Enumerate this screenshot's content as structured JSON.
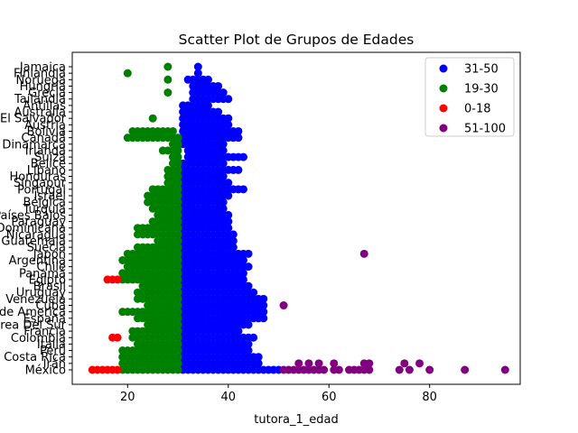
{
  "chart_data": {
    "type": "scatter",
    "title": "Scatter Plot de Grupos de Edades",
    "xlabel": "tutora_1_edad",
    "ylabel": "",
    "xlim": [
      9,
      98
    ],
    "xticks": [
      20,
      40,
      60,
      80
    ],
    "categories": [
      "México",
      "Irán",
      "Costa Rica",
      "Perú",
      "Italia",
      "Colombia",
      "Francia",
      "Corea Del Sur",
      "España",
      "Estados Unidos de America",
      "Cuba",
      "Venezuela",
      "Uruguay",
      "Brasil",
      "Egipto",
      "Panamá",
      "Chile",
      "Argentina",
      "Japón",
      "Suecia",
      "Guatemala",
      "Nicaragua",
      "República Dominicana",
      "Paraguay",
      "Países Bajos",
      "Turquía",
      "Bélgica",
      "Israel",
      "Portugal",
      "Singapur",
      "Honduras",
      "Líbano",
      "Belice",
      "Suiza",
      "Irlanda",
      "Dinamarca",
      "Canadá",
      "Bolivia",
      "Austria",
      "El Salvador",
      "Australia",
      "Antillas",
      "Tailandia",
      "Grecia",
      "Hungría",
      "Noruega",
      "Finlandia",
      "Jamaica"
    ],
    "legend_position": "top-right",
    "series": [
      {
        "name": "31-50",
        "color": "#0000ff",
        "x_min": 31,
        "x_max": 50,
        "spans": [
          [
            0,
            31,
            50
          ],
          [
            1,
            31,
            46
          ],
          [
            2,
            31,
            46
          ],
          [
            3,
            31,
            44
          ],
          [
            4,
            31,
            44
          ],
          [
            5,
            31,
            45
          ],
          [
            6,
            31,
            42
          ],
          [
            7,
            31,
            44
          ],
          [
            8,
            31,
            47
          ],
          [
            9,
            31,
            47
          ],
          [
            10,
            31,
            47
          ],
          [
            11,
            31,
            47
          ],
          [
            12,
            31,
            45
          ],
          [
            13,
            31,
            44
          ],
          [
            14,
            31,
            43
          ],
          [
            15,
            31,
            43
          ],
          [
            16,
            31,
            44
          ],
          [
            17,
            31,
            43
          ],
          [
            18,
            31,
            44
          ],
          [
            19,
            31,
            41
          ],
          [
            20,
            31,
            41
          ],
          [
            21,
            31,
            41
          ],
          [
            22,
            31,
            40
          ],
          [
            23,
            31,
            40
          ],
          [
            24,
            31,
            40
          ],
          [
            25,
            31,
            39
          ],
          [
            26,
            31,
            39
          ],
          [
            27,
            31,
            40
          ],
          [
            28,
            31,
            43
          ],
          [
            29,
            31,
            40
          ],
          [
            30,
            31,
            39
          ],
          [
            31,
            31,
            42
          ],
          [
            32,
            31,
            39
          ],
          [
            33,
            32,
            43
          ],
          [
            34,
            32,
            39
          ],
          [
            35,
            31,
            39
          ],
          [
            36,
            31,
            42
          ],
          [
            37,
            31,
            42
          ],
          [
            38,
            31,
            40
          ],
          [
            39,
            31,
            40
          ],
          [
            40,
            31,
            38
          ],
          [
            41,
            31,
            36
          ],
          [
            42,
            33,
            40
          ],
          [
            43,
            33,
            39
          ],
          [
            44,
            33,
            38
          ],
          [
            45,
            32,
            36
          ],
          [
            46,
            34,
            34
          ],
          [
            47,
            34,
            34
          ]
        ]
      },
      {
        "name": "19-30",
        "color": "#008000",
        "x_min": 19,
        "x_max": 30,
        "spans": [
          [
            0,
            19,
            30
          ],
          [
            1,
            19,
            30
          ],
          [
            2,
            19,
            30
          ],
          [
            3,
            19,
            30
          ],
          [
            4,
            22,
            30
          ],
          [
            5,
            21,
            30
          ],
          [
            6,
            21,
            30
          ],
          [
            7,
            24,
            30
          ],
          [
            8,
            22,
            30
          ],
          [
            9,
            19,
            30
          ],
          [
            10,
            24,
            30
          ],
          [
            11,
            22,
            30
          ],
          [
            12,
            22,
            30
          ],
          [
            13,
            23,
            30
          ],
          [
            14,
            19,
            30
          ],
          [
            15,
            19,
            30
          ],
          [
            16,
            20,
            30
          ],
          [
            17,
            19,
            30
          ],
          [
            18,
            20,
            30
          ],
          [
            19,
            22,
            30
          ],
          [
            20,
            26,
            30
          ],
          [
            21,
            22,
            30
          ],
          [
            22,
            22,
            30
          ],
          [
            23,
            25,
            30
          ],
          [
            24,
            26,
            30
          ],
          [
            25,
            25,
            30
          ],
          [
            26,
            24,
            30
          ],
          [
            27,
            24,
            30
          ],
          [
            28,
            25,
            30
          ],
          [
            29,
            28,
            30
          ],
          [
            30,
            28,
            30
          ],
          [
            31,
            28,
            30
          ],
          [
            32,
            29,
            30
          ],
          [
            33,
            29,
            30
          ],
          [
            34,
            27,
            30
          ],
          [
            35,
            29,
            30
          ],
          [
            36,
            20,
            30
          ],
          [
            37,
            21,
            29
          ],
          [
            39,
            25,
            25
          ],
          [
            43,
            28,
            28
          ],
          [
            45,
            28,
            28
          ],
          [
            46,
            20,
            20
          ],
          [
            47,
            28,
            28
          ]
        ]
      },
      {
        "name": "0-18",
        "color": "#ff0000",
        "x_min": 13,
        "x_max": 18,
        "spans": [
          [
            0,
            13,
            18
          ],
          [
            5,
            17,
            18
          ],
          [
            14,
            16,
            18
          ]
        ]
      },
      {
        "name": "51-100",
        "color": "#800080",
        "x_min": 51,
        "x_max": 95,
        "points": [
          [
            0,
            51
          ],
          [
            0,
            52
          ],
          [
            0,
            53
          ],
          [
            0,
            54
          ],
          [
            0,
            55
          ],
          [
            0,
            56
          ],
          [
            0,
            57
          ],
          [
            0,
            58
          ],
          [
            0,
            59
          ],
          [
            0,
            61
          ],
          [
            0,
            62
          ],
          [
            0,
            64
          ],
          [
            0,
            65
          ],
          [
            0,
            66
          ],
          [
            0,
            67
          ],
          [
            0,
            68
          ],
          [
            0,
            74
          ],
          [
            0,
            76
          ],
          [
            0,
            80
          ],
          [
            0,
            87
          ],
          [
            0,
            95
          ],
          [
            1,
            54
          ],
          [
            1,
            56
          ],
          [
            1,
            58
          ],
          [
            1,
            61
          ],
          [
            1,
            67
          ],
          [
            1,
            68
          ],
          [
            1,
            75
          ],
          [
            1,
            78
          ],
          [
            10,
            51
          ],
          [
            18,
            67
          ]
        ]
      }
    ]
  }
}
